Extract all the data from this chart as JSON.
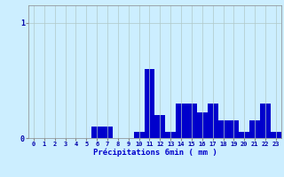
{
  "categories": [
    0,
    1,
    2,
    3,
    4,
    5,
    6,
    7,
    8,
    9,
    10,
    11,
    12,
    13,
    14,
    15,
    16,
    17,
    18,
    19,
    20,
    21,
    22,
    23
  ],
  "values": [
    0,
    0,
    0,
    0,
    0,
    0,
    0.1,
    0.1,
    0,
    0,
    0.05,
    0.6,
    0.2,
    0.05,
    0.3,
    0.3,
    0.22,
    0.3,
    0.15,
    0.15,
    0.05,
    0.15,
    0.3,
    0.05
  ],
  "bar_color": "#0000cc",
  "background_color": "#cceeff",
  "grid_color": "#b0c8c8",
  "xlabel": "Précipitations 6min ( mm )",
  "xlabel_color": "#0000cc",
  "ylabel_values": [
    0,
    1
  ],
  "ylim": [
    0,
    1.15
  ],
  "xlim": [
    -0.5,
    23.5
  ],
  "tick_color": "#0000aa",
  "axis_color": "#888888"
}
